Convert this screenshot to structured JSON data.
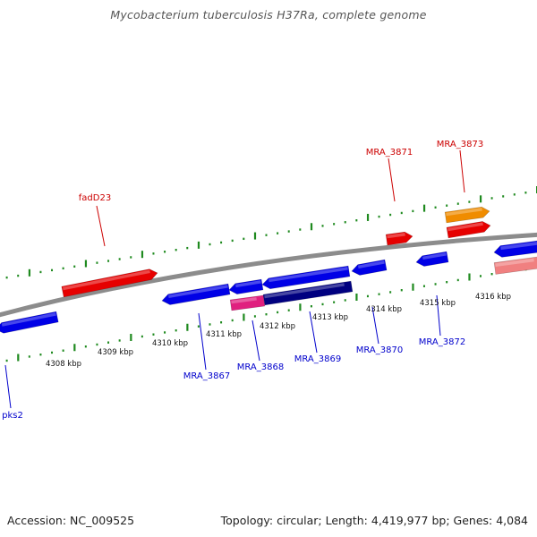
{
  "header": {
    "title": "Mycobacterium tuberculosis H37Ra, complete genome"
  },
  "footer": {
    "accession": "Accession: NC_009525",
    "stats": "Topology: circular; Length: 4,419,977 bp; Genes: 4,084"
  },
  "colors": {
    "backbone": "#8c8c8c",
    "tick": "#1f8a1f",
    "forward_label": "#cc0000",
    "reverse_label": "#0000cc",
    "tick_label": "#111111"
  },
  "scale": {
    "labels": [
      "4308 kbp",
      "4309 kbp",
      "4310 kbp",
      "4311 kbp",
      "4312 kbp",
      "4313 kbp",
      "4314 kbp",
      "4315 kbp",
      "4316 kbp"
    ]
  },
  "gene_labels": {
    "forward": [
      "fadD23",
      "MRA_3871",
      "MRA_3873"
    ],
    "reverse": [
      "pks2",
      "MRA_3867",
      "MRA_3868",
      "MRA_3869",
      "MRA_3870",
      "MRA_3872"
    ]
  },
  "features": [
    {
      "name": "forward-gene-arrow",
      "color": "#e60000",
      "direction": "right"
    },
    {
      "name": "forward-gene-arrow",
      "color": "#e60000",
      "direction": "right"
    },
    {
      "name": "forward-gene-arrow",
      "color": "#e60000",
      "direction": "right"
    },
    {
      "name": "forward-gene-arrow",
      "color": "#f08c00",
      "direction": "right"
    },
    {
      "name": "reverse-gene-arrow",
      "color": "#0000e6",
      "direction": "left"
    },
    {
      "name": "reverse-gene-arrow",
      "color": "#0000e6",
      "direction": "left"
    },
    {
      "name": "reverse-gene-arrow",
      "color": "#0000e6",
      "direction": "left"
    },
    {
      "name": "reverse-gene-arrow",
      "color": "#0000e6",
      "direction": "left"
    },
    {
      "name": "reverse-gene-arrow",
      "color": "#0000e6",
      "direction": "left"
    },
    {
      "name": "reverse-gene-arrow",
      "color": "#0000e6",
      "direction": "left"
    },
    {
      "name": "reverse-gene-arrow",
      "color": "#0000e6",
      "direction": "left"
    },
    {
      "name": "reverse-gene-bar",
      "color": "#e0207f",
      "direction": "left"
    },
    {
      "name": "reverse-gene-bar",
      "color": "#000080",
      "direction": "left"
    },
    {
      "name": "pseudogene-bar",
      "color": "#f08080",
      "direction": "right"
    }
  ]
}
